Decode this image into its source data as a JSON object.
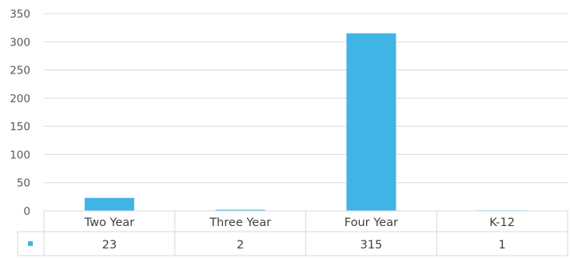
{
  "chart_data": {
    "type": "bar",
    "categories": [
      "Two Year",
      "Three Year",
      "Four Year",
      "K-12"
    ],
    "values": [
      23,
      2,
      315,
      1
    ],
    "series": [
      {
        "values": [
          23,
          2,
          315,
          1
        ]
      }
    ],
    "title": "",
    "xlabel": "",
    "ylabel": "",
    "ylim": [
      0,
      350
    ],
    "yticks": [
      0,
      50,
      100,
      150,
      200,
      250,
      300,
      350
    ],
    "grid": true,
    "legend": "data-table",
    "bar_color": "#41b4e6"
  }
}
